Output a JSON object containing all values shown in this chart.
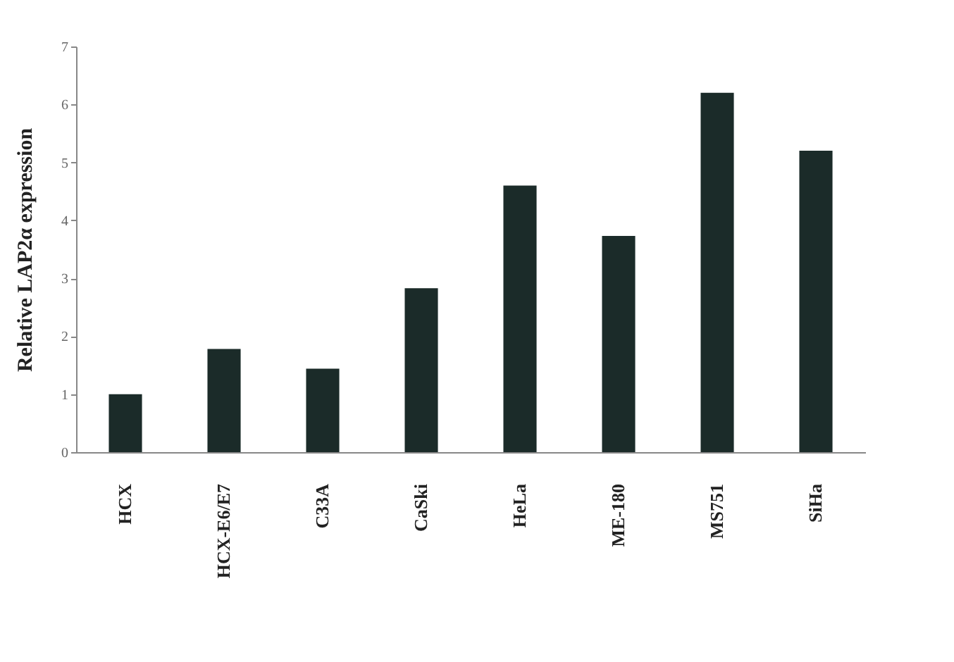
{
  "chart_data": {
    "type": "bar",
    "ylabel": "Relative LAP2α expression",
    "categories": [
      "HCX",
      "HCX-E6/E7",
      "C33A",
      "CaSki",
      "HeLa",
      "ME-180",
      "MS751",
      "SiHa"
    ],
    "values": [
      1.0,
      1.78,
      1.44,
      2.83,
      4.6,
      3.73,
      6.2,
      5.2
    ],
    "color": "#1b2b29",
    "ylim": [
      0,
      7
    ],
    "yticks": [
      0,
      1,
      2,
      3,
      4,
      5,
      6,
      7
    ],
    "grid": false
  }
}
